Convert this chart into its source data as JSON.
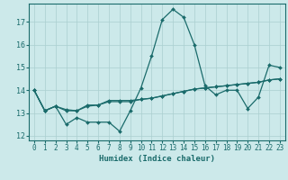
{
  "xlabel": "Humidex (Indice chaleur)",
  "bg_color": "#cce9ea",
  "line_color": "#1a6b6b",
  "grid_color": "#aacfcf",
  "xlim": [
    -0.5,
    23.5
  ],
  "ylim": [
    11.8,
    17.8
  ],
  "yticks": [
    12,
    13,
    14,
    15,
    16,
    17
  ],
  "xticks": [
    0,
    1,
    2,
    3,
    4,
    5,
    6,
    7,
    8,
    9,
    10,
    11,
    12,
    13,
    14,
    15,
    16,
    17,
    18,
    19,
    20,
    21,
    22,
    23
  ],
  "series": [
    [
      14.0,
      13.1,
      13.3,
      12.5,
      12.8,
      12.6,
      12.6,
      12.6,
      12.2,
      13.1,
      14.1,
      15.5,
      17.1,
      17.55,
      17.2,
      16.0,
      14.2,
      13.8,
      14.0,
      14.0,
      13.2,
      13.7,
      15.1,
      15.0
    ],
    [
      14.0,
      13.1,
      13.3,
      13.15,
      13.1,
      13.3,
      13.35,
      13.5,
      13.5,
      13.5,
      13.6,
      13.65,
      13.75,
      13.85,
      13.95,
      14.05,
      14.1,
      14.15,
      14.2,
      14.25,
      14.3,
      14.35,
      14.45,
      14.5
    ],
    [
      14.0,
      13.1,
      13.3,
      13.1,
      13.1,
      13.35,
      13.35,
      13.55,
      13.55,
      13.55,
      13.6,
      13.65,
      13.75,
      13.85,
      13.95,
      14.05,
      14.1,
      14.15,
      14.2,
      14.25,
      14.3,
      14.35,
      14.45,
      14.5
    ]
  ]
}
